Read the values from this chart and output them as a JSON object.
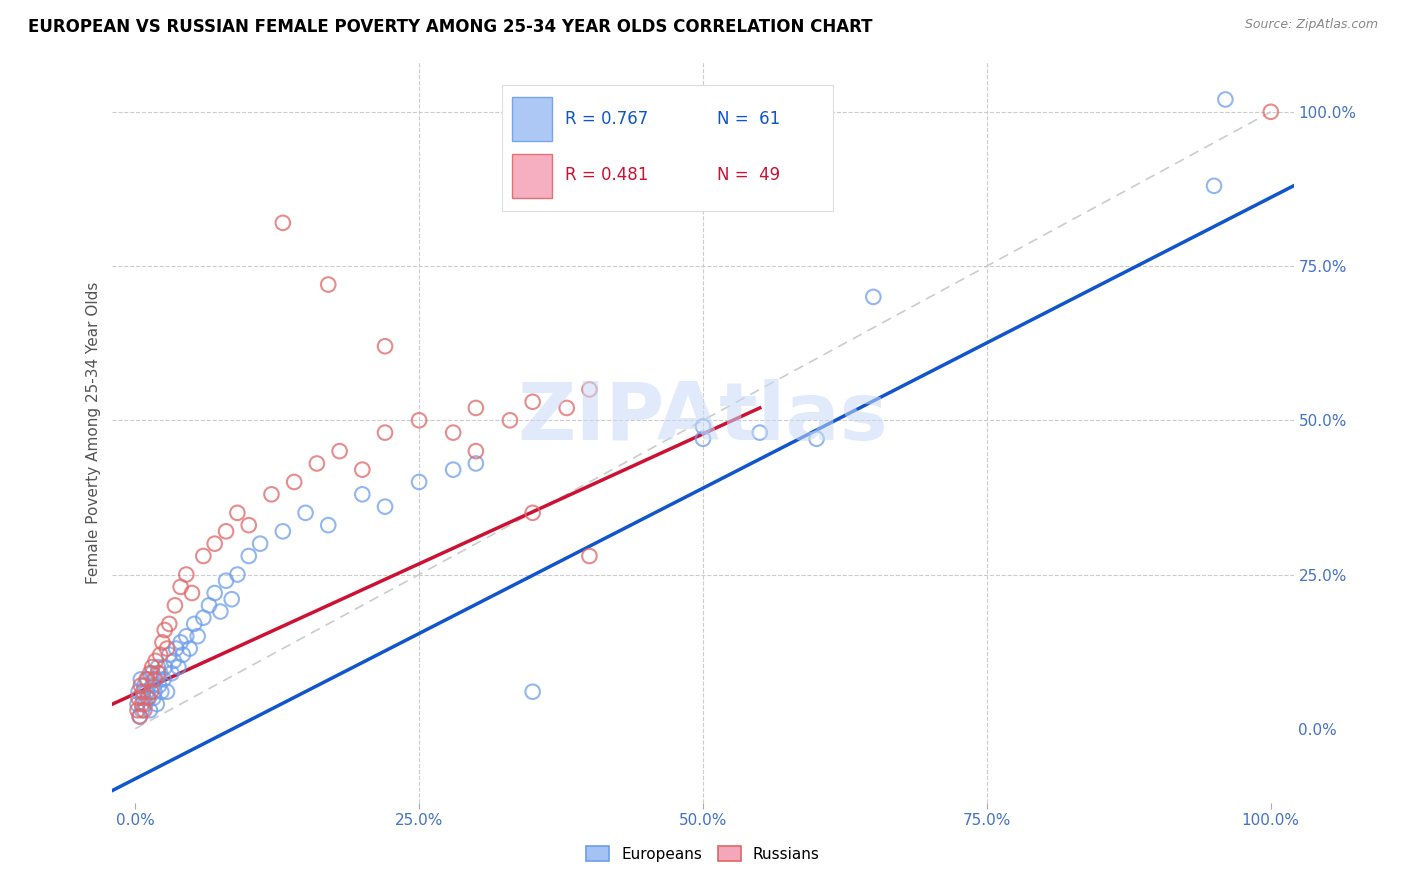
{
  "title": "EUROPEAN VS RUSSIAN FEMALE POVERTY AMONG 25-34 YEAR OLDS CORRELATION CHART",
  "source": "Source: ZipAtlas.com",
  "ylabel": "Female Poverty Among 25-34 Year Olds",
  "watermark": "ZIPAtlas",
  "blue_R": 0.767,
  "blue_N": 61,
  "pink_R": 0.481,
  "pink_N": 49,
  "blue_color": "#a4c2f4",
  "pink_color": "#f4a7b9",
  "blue_edge_color": "#6d9eeb",
  "pink_edge_color": "#e06666",
  "blue_line_color": "#1155cc",
  "pink_line_color": "#cc1133",
  "diag_color": "#cccccc",
  "grid_color": "#cccccc",
  "tick_color": "#4472c4",
  "title_color": "#000000",
  "source_color": "#888888",
  "ylabel_color": "#555555",
  "watermark_color": "#c9daf8",
  "xlim": [
    -0.02,
    1.02
  ],
  "ylim": [
    -0.12,
    1.08
  ],
  "xticks": [
    0.0,
    0.25,
    0.5,
    0.75,
    1.0
  ],
  "xticklabels": [
    "0.0%",
    "25.0%",
    "50.0%",
    "75.0%",
    "100.0%"
  ],
  "right_yticks": [
    0.0,
    0.25,
    0.5,
    0.75,
    1.0
  ],
  "right_yticklabels": [
    "0.0%",
    "25.0%",
    "50.0%",
    "75.0%",
    "100.0%"
  ],
  "hgrid_values": [
    0.25,
    0.5,
    0.75,
    1.0
  ],
  "vgrid_values": [
    0.25,
    0.5,
    0.75
  ],
  "europeans_x": [
    0.002,
    0.003,
    0.004,
    0.005,
    0.006,
    0.007,
    0.008,
    0.009,
    0.01,
    0.011,
    0.012,
    0.013,
    0.015,
    0.015,
    0.016,
    0.017,
    0.018,
    0.019,
    0.02,
    0.021,
    0.022,
    0.023,
    0.025,
    0.026,
    0.028,
    0.03,
    0.032,
    0.034,
    0.036,
    0.038,
    0.04,
    0.042,
    0.045,
    0.048,
    0.052,
    0.055,
    0.06,
    0.065,
    0.07,
    0.075,
    0.08,
    0.085,
    0.09,
    0.1,
    0.11,
    0.13,
    0.15,
    0.17,
    0.2,
    0.22,
    0.25,
    0.28,
    0.3,
    0.35,
    0.5,
    0.5,
    0.55,
    0.6,
    0.65,
    0.95,
    0.96
  ],
  "europeans_y": [
    0.04,
    0.06,
    0.02,
    0.08,
    0.03,
    0.05,
    0.07,
    0.04,
    0.06,
    0.08,
    0.05,
    0.03,
    0.07,
    0.09,
    0.05,
    0.06,
    0.08,
    0.04,
    0.1,
    0.07,
    0.09,
    0.06,
    0.08,
    0.1,
    0.06,
    0.12,
    0.09,
    0.11,
    0.13,
    0.1,
    0.14,
    0.12,
    0.15,
    0.13,
    0.17,
    0.15,
    0.18,
    0.2,
    0.22,
    0.19,
    0.24,
    0.21,
    0.25,
    0.28,
    0.3,
    0.32,
    0.35,
    0.33,
    0.38,
    0.36,
    0.4,
    0.42,
    0.43,
    0.06,
    0.47,
    0.49,
    0.48,
    0.47,
    0.7,
    0.88,
    1.02
  ],
  "russians_x": [
    0.002,
    0.003,
    0.004,
    0.005,
    0.006,
    0.007,
    0.008,
    0.01,
    0.011,
    0.013,
    0.014,
    0.015,
    0.017,
    0.018,
    0.02,
    0.022,
    0.024,
    0.026,
    0.028,
    0.03,
    0.035,
    0.04,
    0.045,
    0.05,
    0.06,
    0.07,
    0.08,
    0.09,
    0.1,
    0.12,
    0.14,
    0.16,
    0.18,
    0.2,
    0.22,
    0.25,
    0.28,
    0.3,
    0.33,
    0.35,
    0.38,
    0.4,
    0.13,
    0.17,
    0.22,
    0.3,
    0.35,
    0.4,
    1.0
  ],
  "russians_y": [
    0.03,
    0.05,
    0.02,
    0.07,
    0.04,
    0.06,
    0.03,
    0.08,
    0.05,
    0.09,
    0.06,
    0.1,
    0.08,
    0.11,
    0.09,
    0.12,
    0.14,
    0.16,
    0.13,
    0.17,
    0.2,
    0.23,
    0.25,
    0.22,
    0.28,
    0.3,
    0.32,
    0.35,
    0.33,
    0.38,
    0.4,
    0.43,
    0.45,
    0.42,
    0.48,
    0.5,
    0.48,
    0.52,
    0.5,
    0.53,
    0.52,
    0.55,
    0.82,
    0.72,
    0.62,
    0.45,
    0.35,
    0.28,
    1.0
  ],
  "blue_line_x0": -0.02,
  "blue_line_x1": 1.02,
  "blue_line_y0": -0.1,
  "blue_line_y1": 0.88,
  "pink_line_x0": -0.02,
  "pink_line_x1": 0.55,
  "pink_line_y0": 0.04,
  "pink_line_y1": 0.52
}
